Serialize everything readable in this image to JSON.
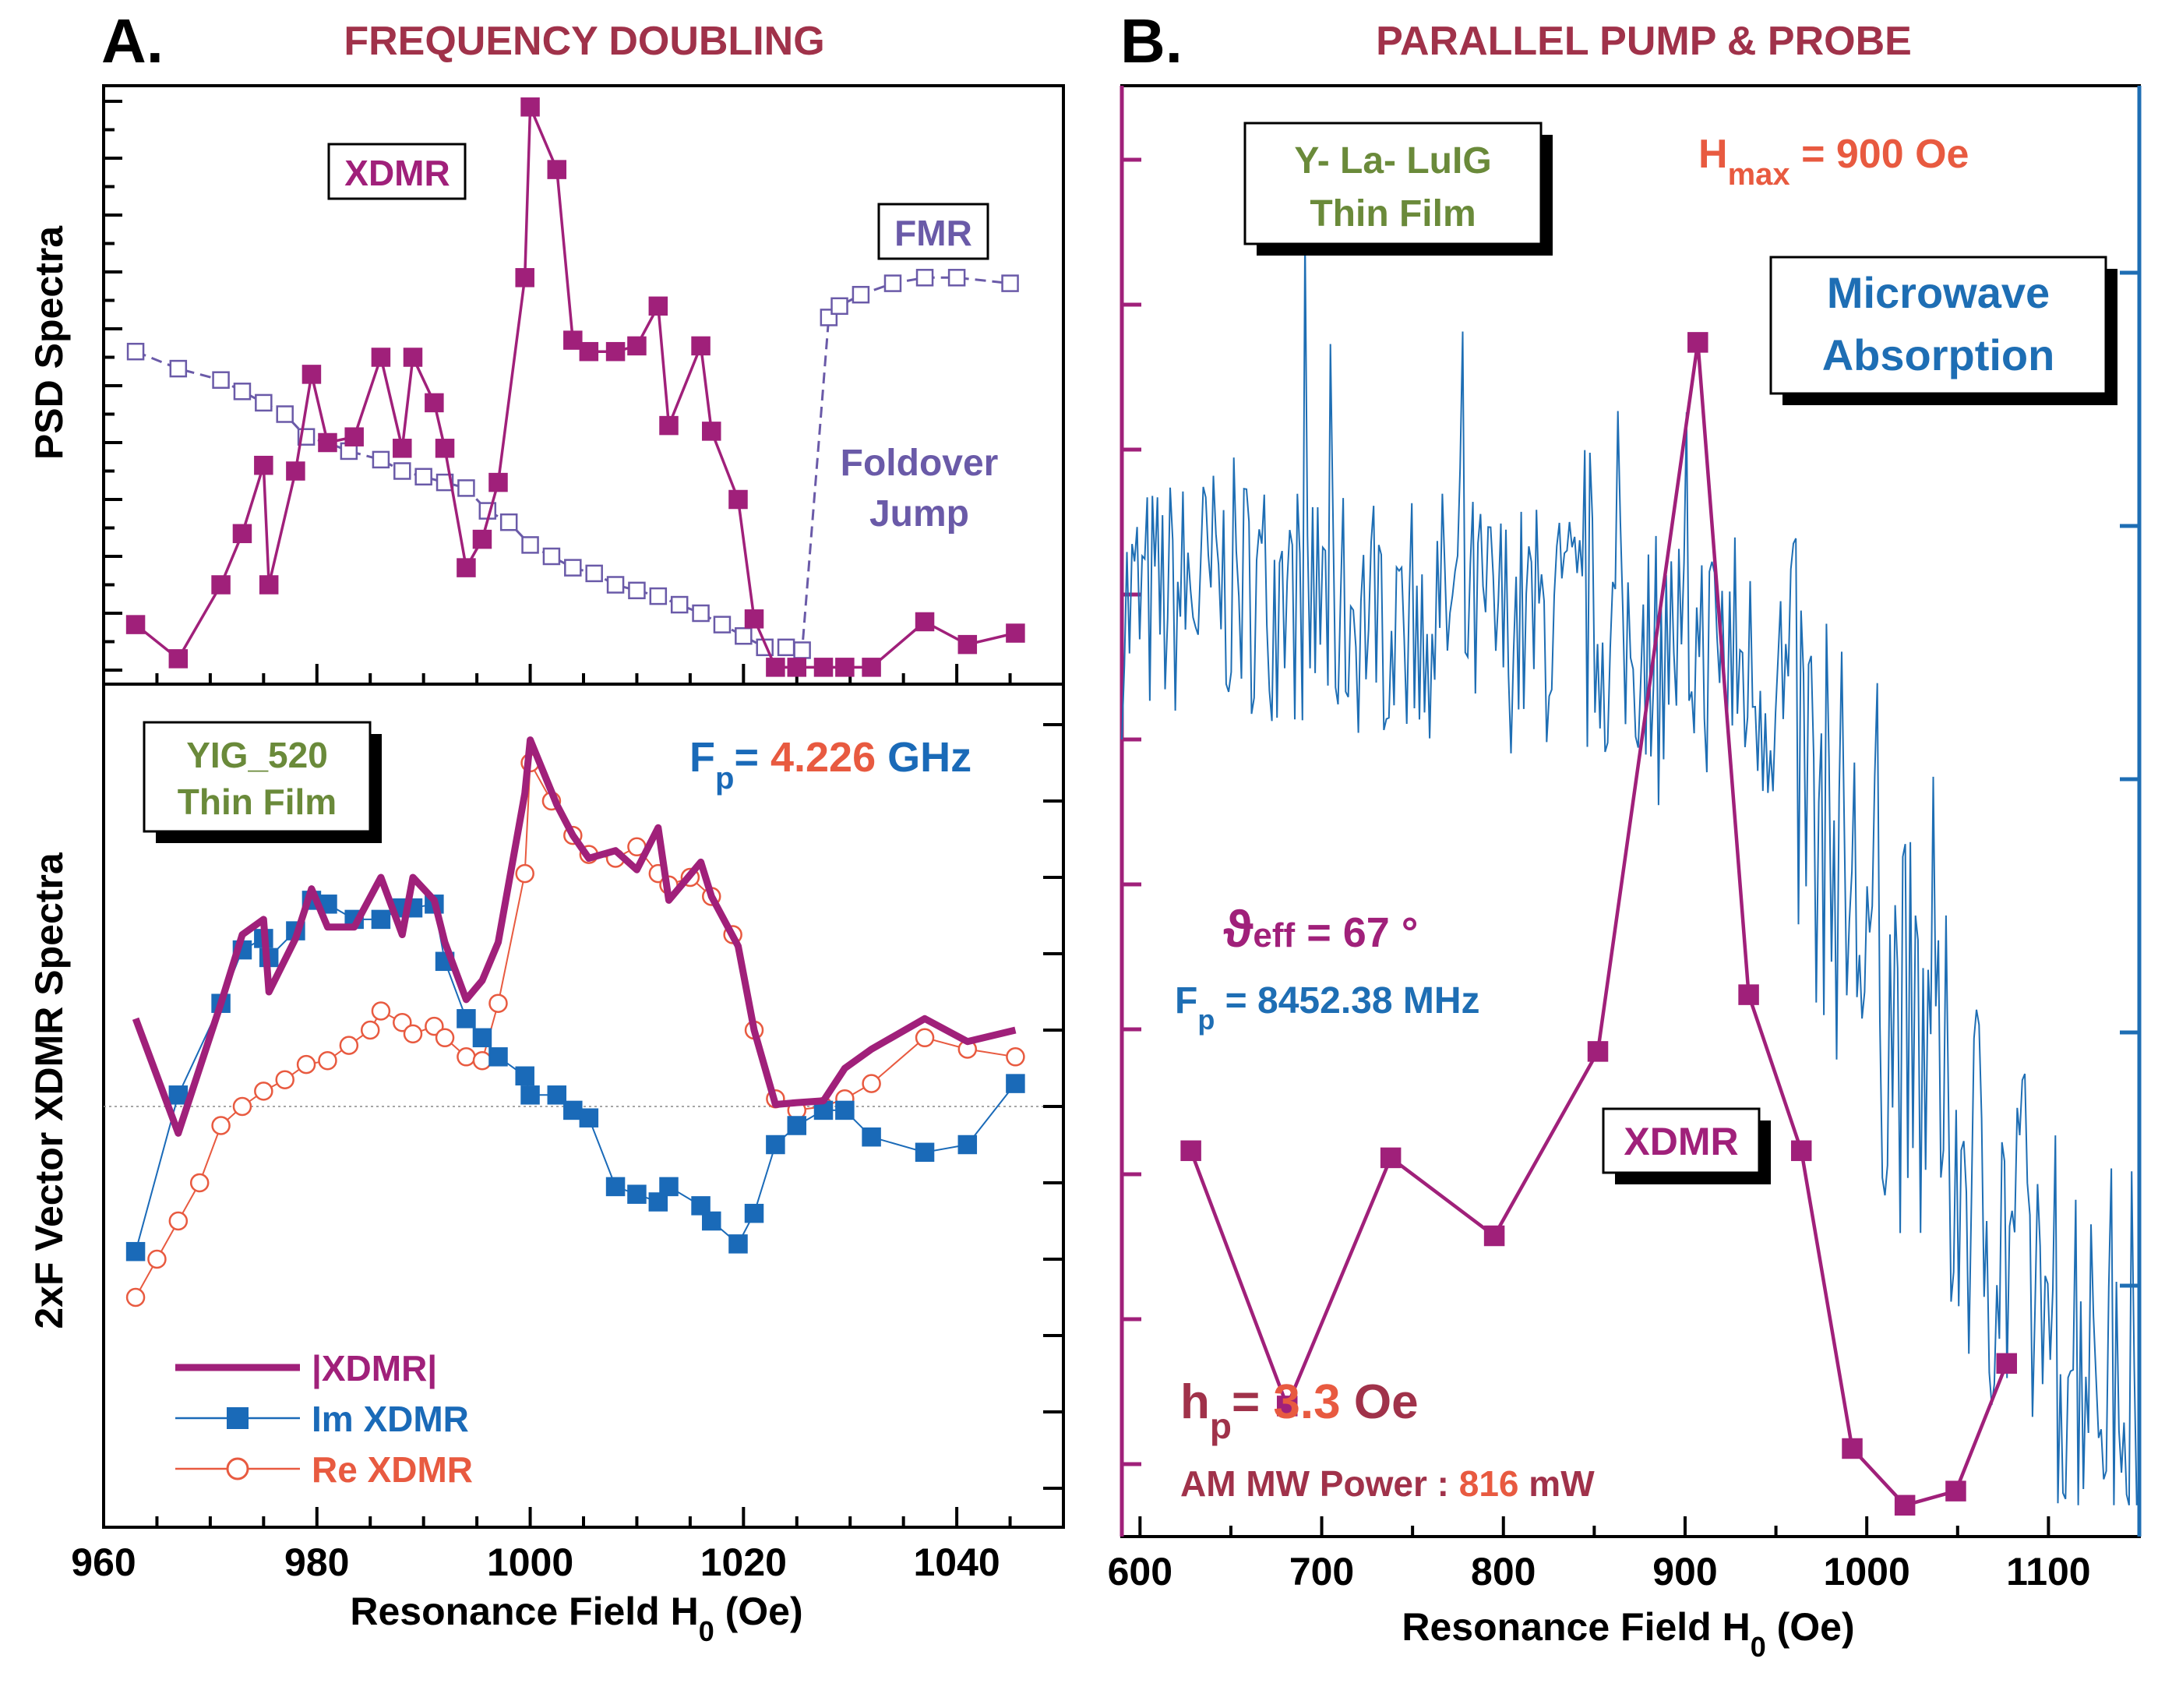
{
  "chart_data": [
    {
      "id": "A-top",
      "type": "line",
      "panel_letter": "A.",
      "title": "FREQUENCY DOUBLING",
      "ylabel": "PSD Spectra",
      "xlim": [
        960,
        1050
      ],
      "ylim": [
        0,
        100
      ],
      "annotations": {
        "xdmr": "XDMR",
        "fmr": "FMR",
        "foldover_line1": "Foldover",
        "foldover_line2": "Jump"
      },
      "series": [
        {
          "name": "XDMR",
          "color": "#a0207a",
          "marker": "filled-square",
          "x": [
            963,
            967,
            971,
            973,
            975,
            975.5,
            978,
            979.5,
            981,
            983.5,
            986,
            988,
            989,
            991,
            992,
            994,
            995.5,
            997,
            999.5,
            1000,
            1002.5,
            1004,
            1005.5,
            1008,
            1010,
            1012,
            1013,
            1016,
            1017,
            1019.5,
            1021,
            1023,
            1025,
            1027.5,
            1029.5,
            1032,
            1037,
            1041,
            1045.5
          ],
          "y": [
            8,
            2,
            15,
            24,
            36,
            15,
            35,
            52,
            40,
            41,
            55,
            39,
            55,
            47,
            39,
            18,
            23,
            33,
            69,
            99,
            88,
            58,
            56,
            56,
            57,
            64,
            43,
            57,
            42,
            30,
            9,
            0.5,
            0.5,
            0.5,
            0.5,
            0.5,
            8.5,
            4.5,
            6.5
          ]
        },
        {
          "name": "FMR",
          "color": "#6a5aa8",
          "marker": "open-square",
          "x": [
            963,
            967,
            971,
            973,
            975,
            977,
            979,
            981,
            983,
            986,
            988,
            990,
            992,
            994,
            996,
            998,
            1000,
            1002,
            1004,
            1006,
            1008,
            1010,
            1012,
            1014,
            1016,
            1018,
            1020,
            1022,
            1024,
            1025.5,
            1028,
            1029,
            1031,
            1034,
            1037,
            1040,
            1045
          ],
          "y": [
            56,
            53,
            51,
            49,
            47,
            45,
            41,
            40,
            38.5,
            37,
            35,
            34,
            33,
            32,
            28,
            26,
            22,
            20,
            18,
            17,
            15,
            14,
            13,
            11.5,
            10,
            8,
            6,
            4,
            4,
            3.5,
            62,
            64,
            66,
            68,
            69,
            69,
            68
          ]
        }
      ]
    },
    {
      "id": "A-bottom",
      "type": "line",
      "ylabel": "2xF  Vector XDMR Spectra",
      "xlabel": "Resonance Field  H₀ (Oe)",
      "xlim": [
        960,
        1050
      ],
      "x_ticks": [
        960,
        980,
        1000,
        1020,
        1040
      ],
      "ylim": [
        -100,
        100
      ],
      "zero_line": true,
      "annotations": {
        "sample_line1": "YIG_520",
        "sample_line2": "Thin Film",
        "freq_label": "F",
        "freq_sub": "p",
        "freq_eq": "= ",
        "freq_value": "4.226",
        "freq_unit": " GHz"
      },
      "legend": [
        "|XDMR|",
        "Im XDMR",
        "Re XDMR"
      ],
      "legend_position": "lower-left",
      "series": [
        {
          "name": "|XDMR|",
          "color": "#a0207a",
          "marker": "none",
          "x": [
            963,
            967,
            971,
            973,
            975,
            975.5,
            978,
            979.5,
            981,
            983.5,
            986,
            988,
            989,
            991,
            992,
            994,
            995.5,
            997,
            999.5,
            1000,
            1002.5,
            1004,
            1005.5,
            1008,
            1010,
            1012,
            1013,
            1016,
            1017,
            1019.5,
            1021,
            1023,
            1025,
            1027.5,
            1029.5,
            1032,
            1037,
            1041,
            1045.5
          ],
          "y": [
            23,
            -7,
            27,
            45,
            49,
            30,
            44,
            57,
            47,
            47,
            60,
            45,
            60,
            54,
            43,
            28,
            33,
            43,
            82,
            96,
            79,
            71,
            65,
            67,
            62,
            73,
            54,
            64,
            55,
            42,
            20,
            0.5,
            1,
            1.5,
            10,
            15,
            23,
            17,
            20
          ]
        },
        {
          "name": "Im XDMR",
          "color": "#1a6ab8",
          "marker": "filled-square",
          "x": [
            963,
            967,
            971,
            973,
            975,
            975.5,
            978,
            979.5,
            981,
            983.5,
            986,
            988,
            989,
            991,
            992,
            994,
            995.5,
            997,
            999.5,
            1000,
            1002.5,
            1004,
            1005.5,
            1008,
            1010,
            1012,
            1013,
            1016,
            1017,
            1019.5,
            1021,
            1023,
            1025,
            1027.5,
            1029.5,
            1032,
            1037,
            1041,
            1045.5
          ],
          "y": [
            -38,
            3,
            27,
            41,
            44,
            39,
            46,
            54,
            53,
            49,
            49,
            52,
            52,
            53,
            38,
            23,
            18,
            13,
            8,
            3,
            3,
            -1,
            -3,
            -21,
            -23,
            -25,
            -21,
            -26,
            -30,
            -36,
            -28,
            -10,
            -5,
            -1,
            -1,
            -8,
            -12,
            -10,
            6
          ]
        },
        {
          "name": "Re XDMR",
          "color": "#e85a40",
          "marker": "open-circle",
          "x": [
            963,
            965,
            967,
            969,
            971,
            973,
            975,
            977,
            979,
            981,
            983,
            985,
            986,
            988,
            989,
            991,
            992,
            994,
            995.5,
            997,
            999.5,
            1000,
            1002,
            1004,
            1005.5,
            1008,
            1010,
            1012,
            1013,
            1015,
            1017,
            1019,
            1021,
            1023,
            1025,
            1027.5,
            1029.5,
            1032,
            1037,
            1041,
            1045.5
          ],
          "y": [
            -50,
            -40,
            -30,
            -20,
            -5,
            0,
            4,
            7,
            11,
            12,
            16,
            20,
            25,
            22,
            19,
            21,
            18,
            13,
            12,
            27,
            61,
            90,
            80,
            71,
            66,
            65,
            68,
            61,
            58,
            60,
            55,
            45,
            20,
            2,
            -1,
            0,
            2,
            6,
            18,
            15,
            13
          ]
        }
      ]
    },
    {
      "id": "B",
      "type": "line",
      "panel_letter": "B.",
      "title": "PARALLEL PUMP & PROBE",
      "xlabel": "Resonance Field H₀ (Oe)",
      "xlim": [
        590,
        1150
      ],
      "x_ticks": [
        600,
        700,
        800,
        900,
        1000,
        1100
      ],
      "ylim": [
        0,
        100
      ],
      "annotations": {
        "sample_line1": "Y- La- LuIG",
        "sample_line2": "Thin Film",
        "hmax_label": "H",
        "hmax_sub": "max",
        "hmax_value": " = 900 Oe",
        "mw_line1": "Microwave",
        "mw_line2": "Absorption",
        "theta_label": "ϑ",
        "theta_sub": "eff",
        "theta_value": "  = 67 °",
        "fp_label": "F",
        "fp_sub": "p",
        "fp_value": " = 8452.38 MHz",
        "xdmr": "XDMR",
        "hp_label": "h",
        "hp_sub": "p",
        "hp_eq": "= ",
        "hp_value": "3.3",
        "hp_unit": " Oe",
        "am_label": "AM  MW Power :  ",
        "am_value": "816",
        "am_unit": " mW"
      },
      "series": [
        {
          "name": "XDMR",
          "color": "#a0207a",
          "marker": "filled-square",
          "x": [
            628,
            681,
            738,
            795,
            852,
            907,
            935,
            964,
            992,
            1021,
            1049,
            1077
          ],
          "y": [
            26,
            8,
            25.5,
            20,
            33,
            83,
            37,
            26,
            5,
            1,
            2,
            11
          ]
        },
        {
          "name": "Microwave Absorption",
          "color": "#1e6eb4",
          "marker": "none",
          "noisy": true,
          "x": [
            590,
            620,
            650,
            680,
            710,
            740,
            770,
            800,
            830,
            860,
            890,
            920,
            950,
            980,
            1010,
            1040,
            1070,
            1100,
            1130,
            1150
          ],
          "y": [
            64,
            65,
            66,
            65,
            64,
            64,
            64,
            63,
            63,
            62,
            62,
            61,
            58,
            48,
            37,
            29,
            21,
            15,
            12,
            10
          ]
        }
      ]
    }
  ]
}
